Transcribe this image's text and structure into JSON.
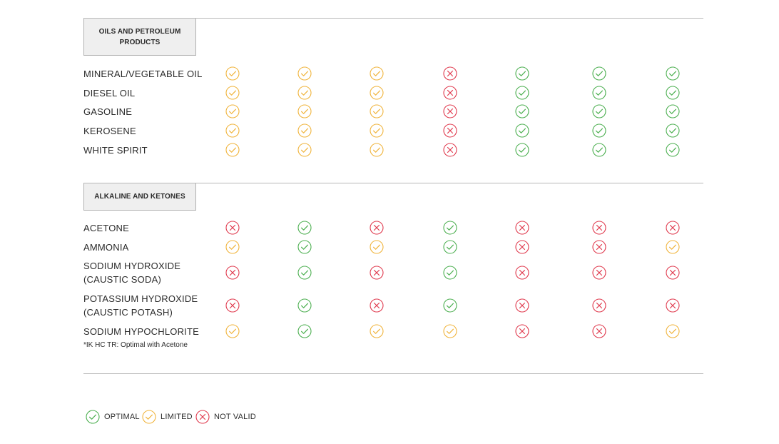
{
  "colors": {
    "optimal": "#4caf50",
    "limited": "#f0b43c",
    "not_valid": "#e03a4e"
  },
  "sections": [
    {
      "title": "OILS AND PETROLEUM PRODUCTS",
      "rows": [
        {
          "label": "MINERAL/VEGETABLE OIL",
          "ratings": [
            "limited",
            "limited",
            "limited",
            "not_valid",
            "optimal",
            "optimal",
            "optimal"
          ]
        },
        {
          "label": "DIESEL OIL",
          "ratings": [
            "limited",
            "limited",
            "limited",
            "not_valid",
            "optimal",
            "optimal",
            "optimal"
          ]
        },
        {
          "label": "GASOLINE",
          "ratings": [
            "limited",
            "limited",
            "limited",
            "not_valid",
            "optimal",
            "optimal",
            "optimal"
          ]
        },
        {
          "label": "KEROSENE",
          "ratings": [
            "limited",
            "limited",
            "limited",
            "not_valid",
            "optimal",
            "optimal",
            "optimal"
          ]
        },
        {
          "label": "WHITE SPIRIT",
          "ratings": [
            "limited",
            "limited",
            "limited",
            "not_valid",
            "optimal",
            "optimal",
            "optimal"
          ]
        }
      ]
    },
    {
      "title": "ALKALINE AND KETONES",
      "rows": [
        {
          "label": "ACETONE",
          "ratings": [
            "not_valid",
            "optimal",
            "not_valid",
            "optimal",
            "not_valid",
            "not_valid",
            "not_valid"
          ]
        },
        {
          "label": "AMMONIA",
          "ratings": [
            "limited",
            "optimal",
            "limited",
            "optimal",
            "not_valid",
            "not_valid",
            "limited"
          ]
        },
        {
          "label": "SODIUM HYDROXIDE\n(CAUSTIC SODA)",
          "ratings": [
            "not_valid",
            "optimal",
            "not_valid",
            "optimal",
            "not_valid",
            "not_valid",
            "not_valid"
          ]
        },
        {
          "label": "POTASSIUM HYDROXIDE\n(CAUSTIC POTASH)",
          "ratings": [
            "not_valid",
            "optimal",
            "not_valid",
            "optimal",
            "not_valid",
            "not_valid",
            "not_valid"
          ]
        },
        {
          "label": "SODIUM HYPOCHLORITE",
          "ratings": [
            "limited",
            "optimal",
            "limited",
            "limited",
            "not_valid",
            "not_valid",
            "limited"
          ]
        }
      ]
    }
  ],
  "footnote": "*IK HC TR: Optimal with Acetone",
  "legend": [
    {
      "key": "optimal",
      "label": "OPTIMAL",
      "icon": "check-circle-icon"
    },
    {
      "key": "limited",
      "label": "LIMITED",
      "icon": "check-circle-icon"
    },
    {
      "key": "not_valid",
      "label": "NOT VALID",
      "icon": "x-circle-icon"
    }
  ]
}
